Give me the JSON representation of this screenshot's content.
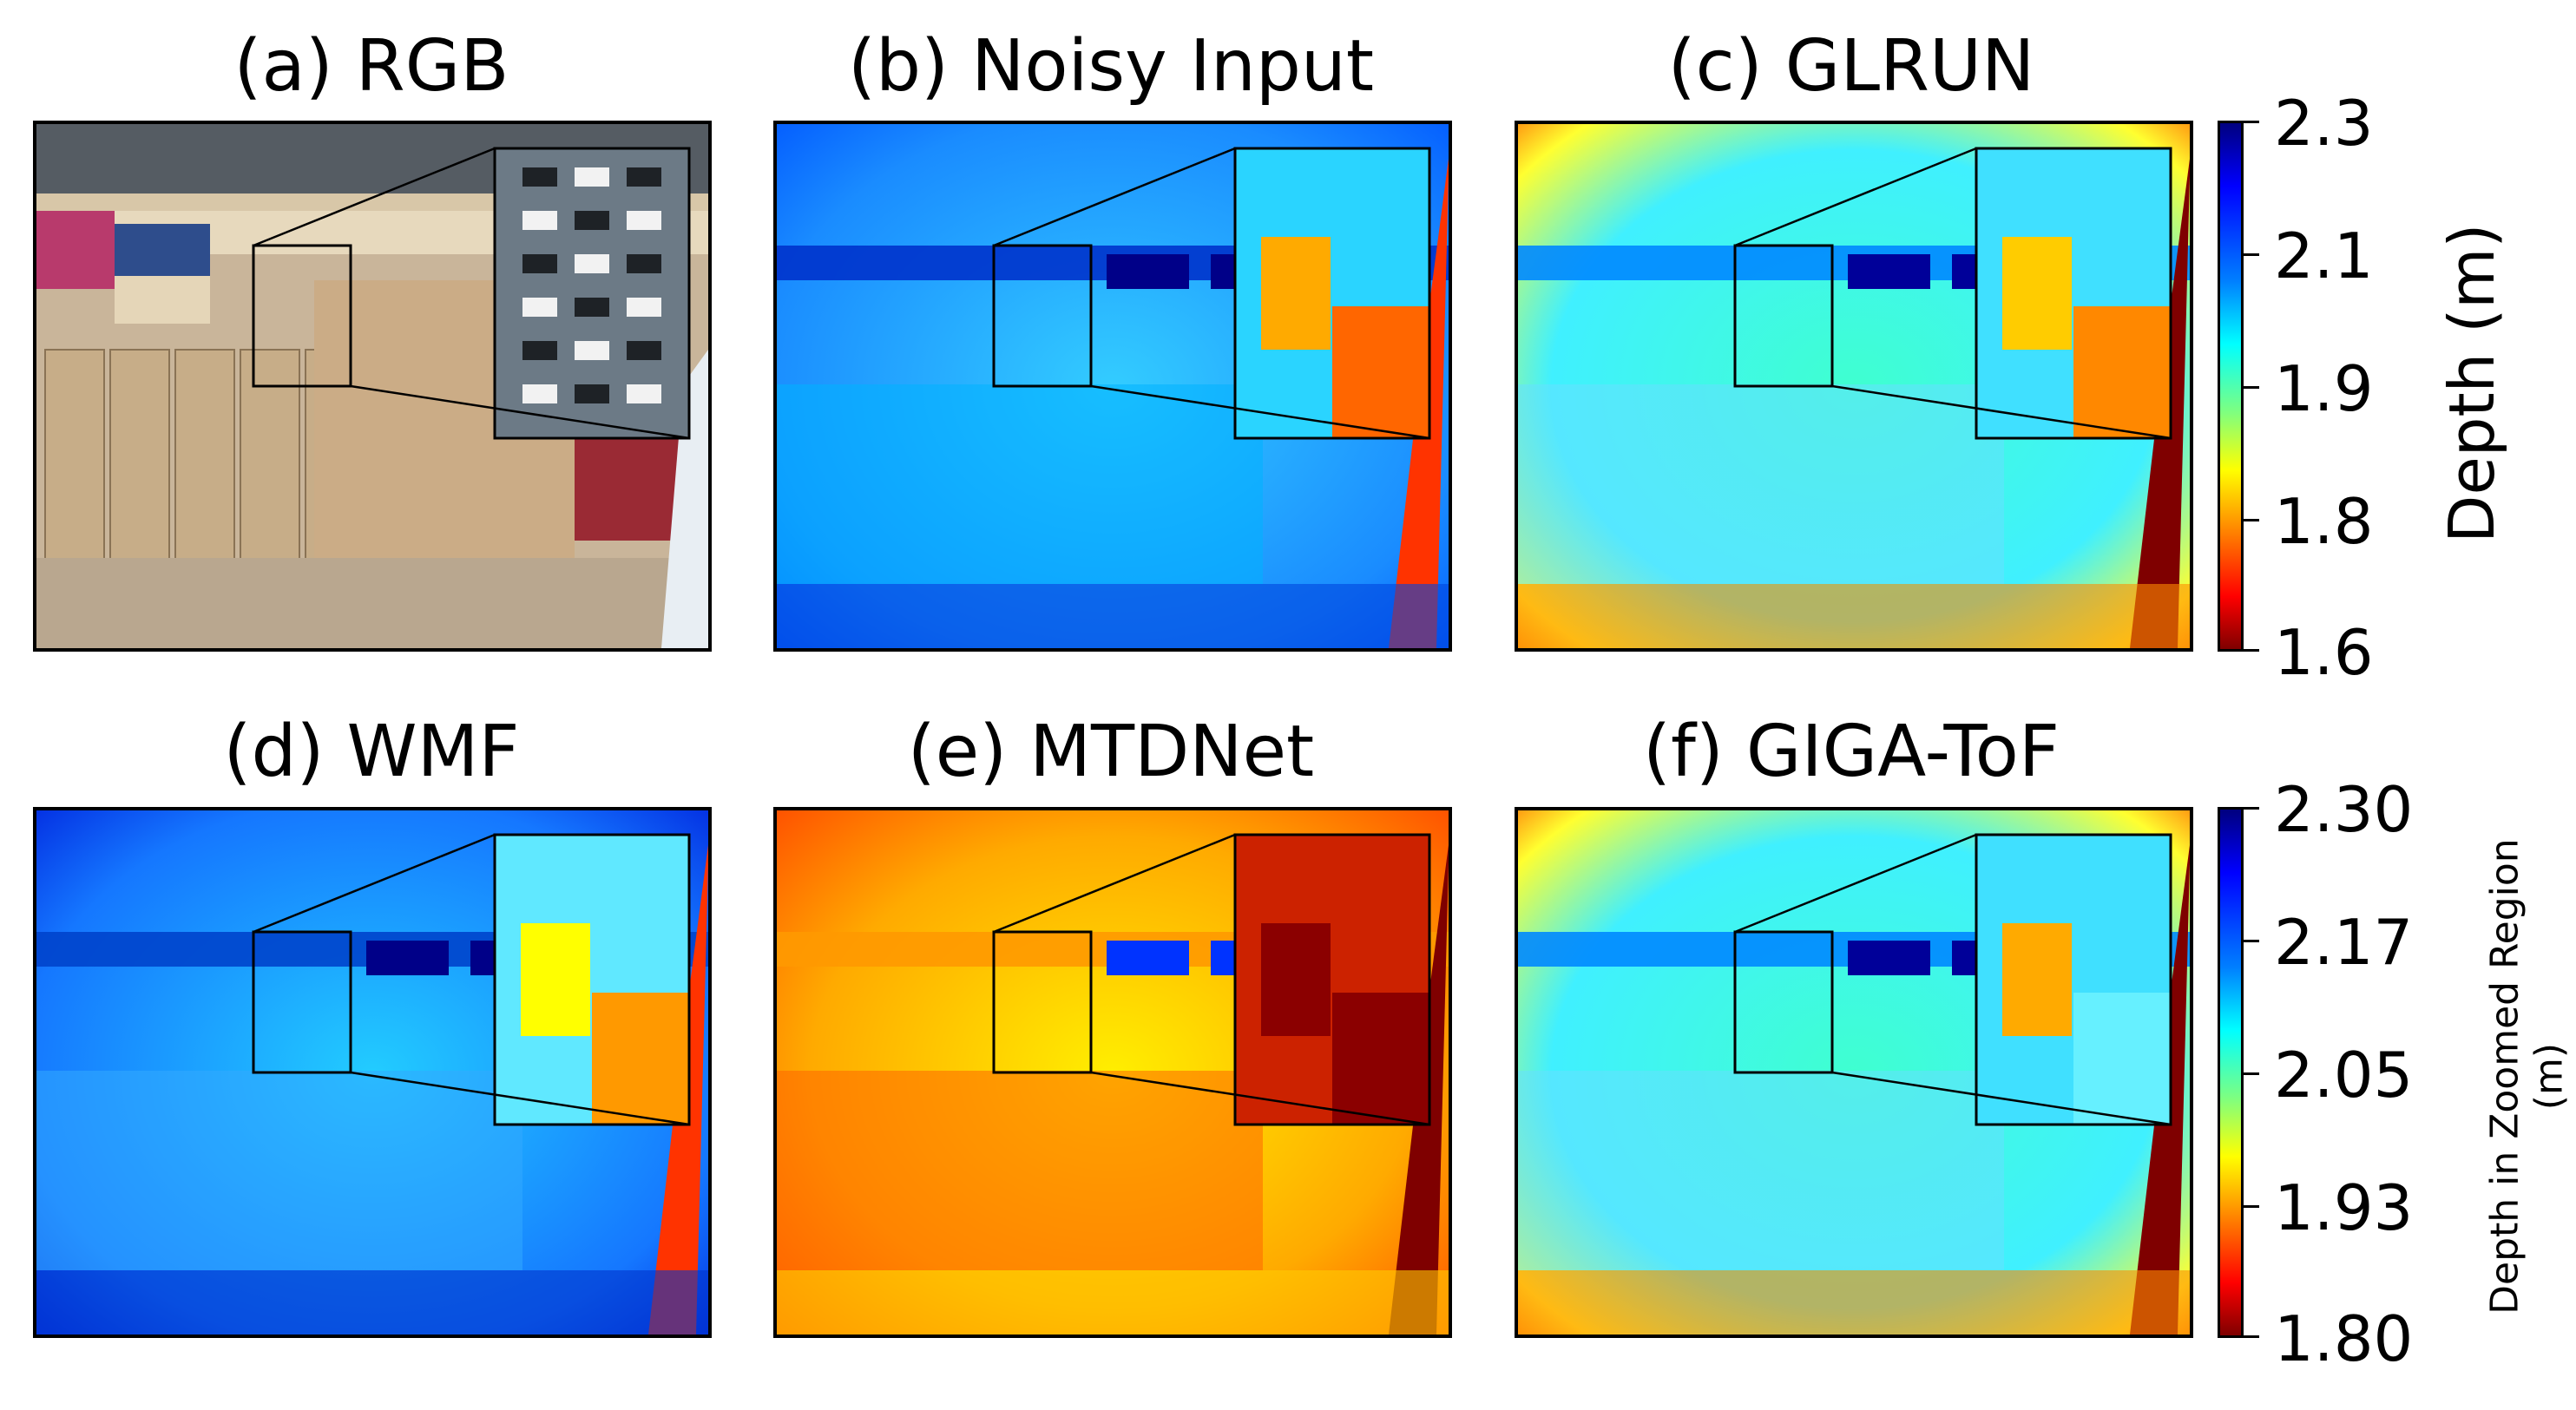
{
  "figure": {
    "panels": [
      {
        "id": "a",
        "title": "(a) RGB",
        "kind": "rgb"
      },
      {
        "id": "b",
        "title": "(b) Noisy Input",
        "kind": "depth-noisy"
      },
      {
        "id": "c",
        "title": "(c) GLRUN",
        "kind": "depth-smooth"
      },
      {
        "id": "d",
        "title": "(d) WMF",
        "kind": "depth-wmf"
      },
      {
        "id": "e",
        "title": "(e) MTDNet",
        "kind": "depth-mtd"
      },
      {
        "id": "f",
        "title": "(f) GIGA-ToF",
        "kind": "depth-giga"
      }
    ],
    "colorbar_top": {
      "label": "Depth (m)",
      "ticks": [
        "2.3",
        "2.1",
        "1.9",
        "1.8",
        "1.6"
      ],
      "colormap": "jet",
      "range": [
        1.6,
        2.3
      ],
      "reversed": true
    },
    "colorbar_bottom": {
      "label_line1": "Depth in Zoomed Region",
      "label_line2": "(m)",
      "ticks": [
        "2.30",
        "2.17",
        "2.05",
        "1.93",
        "1.80"
      ],
      "colormap": "jet",
      "range": [
        1.8,
        2.3
      ],
      "reversed": true
    }
  }
}
